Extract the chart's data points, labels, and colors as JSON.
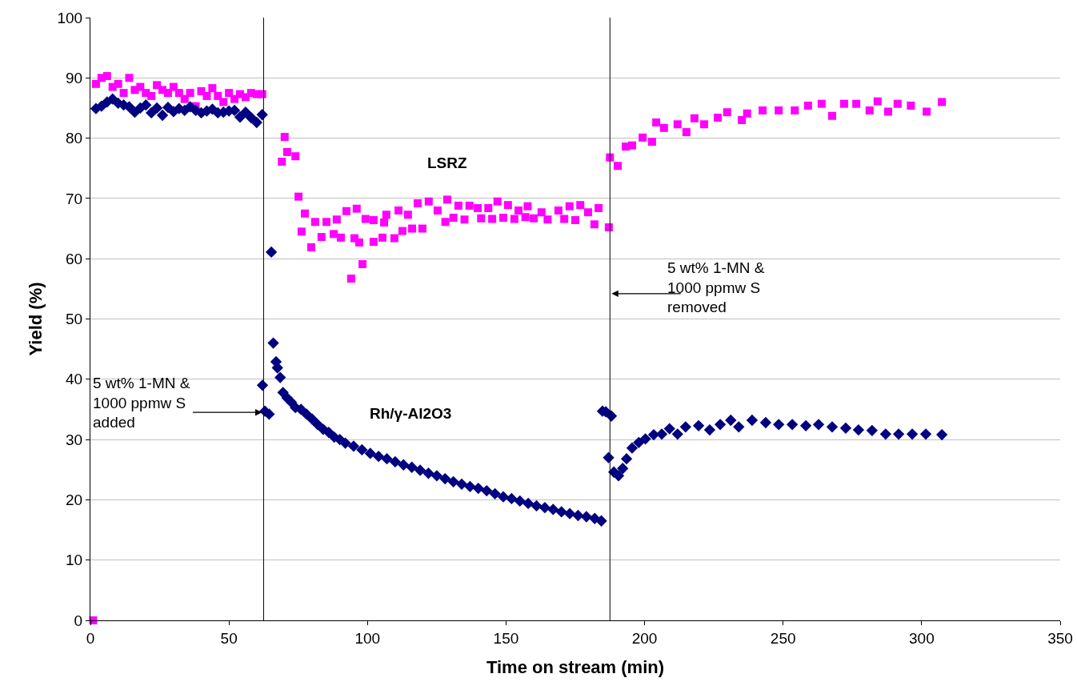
{
  "chart_data": {
    "type": "scatter",
    "xlabel": "Time on stream (min)",
    "ylabel": "Yield (%)",
    "xlim": [
      0,
      350
    ],
    "ylim": [
      0,
      100
    ],
    "xticks": [
      0,
      50,
      100,
      150,
      200,
      250,
      300,
      350
    ],
    "yticks": [
      0,
      10,
      20,
      30,
      40,
      50,
      60,
      70,
      80,
      90,
      100
    ],
    "grid": "y",
    "legend": false,
    "series": [
      {
        "name": "LSRZ",
        "color": "#ff00ff",
        "marker": "square",
        "x": [
          1,
          2,
          4,
          6,
          8,
          10,
          12,
          14,
          16,
          18,
          20,
          22,
          24,
          26,
          28,
          30,
          32,
          34,
          36,
          38,
          40,
          42,
          44,
          46,
          48,
          50,
          52,
          54,
          56,
          58,
          60,
          62,
          69.1,
          70.1,
          71,
          74,
          75.1,
          76.2,
          77.4,
          79.7,
          81.1,
          83.4,
          85.2,
          87.8,
          88.9,
          90.4,
          92.4,
          94.1,
          95.3,
          96.1,
          97,
          98.2,
          99.3,
          102.2,
          102.2,
          105.4,
          106,
          106.8,
          109.7,
          111.2,
          112.6,
          114.6,
          116.1,
          118.1,
          119.8,
          122.1,
          125.3,
          128.1,
          128.8,
          131,
          132.8,
          135,
          136.8,
          139.8,
          141,
          143.6,
          145,
          146.9,
          149,
          150.7,
          153,
          154.5,
          157,
          157.8,
          160,
          162.8,
          165,
          168.9,
          171,
          172.9,
          175,
          176.8,
          179.6,
          181.9,
          183.4,
          187.1,
          187.5,
          190.3,
          193.2,
          195.5,
          199.3,
          202.7,
          204.2,
          207,
          211.9,
          215.1,
          218,
          221.5,
          226.4,
          229.8,
          235.1,
          237,
          242.6,
          248.4,
          254.2,
          259,
          263.9,
          267.7,
          272,
          276.4,
          281.2,
          284.1,
          287.9,
          291.3,
          296.1,
          301.8,
          307.3
        ],
        "values": [
          0,
          89,
          90,
          90.3,
          88.5,
          89,
          87.5,
          90,
          88,
          88.5,
          87.5,
          87,
          88.8,
          88,
          87.5,
          88.5,
          87.5,
          86.5,
          87.5,
          85.3,
          87.8,
          87,
          88.3,
          87,
          86,
          87.5,
          86.5,
          87.3,
          86.8,
          87.5,
          87.3,
          87.3,
          76.1,
          80.2,
          77.7,
          77,
          70.3,
          64.5,
          67.5,
          61.9,
          66.1,
          63.6,
          66.1,
          64.1,
          66.5,
          63.5,
          67.9,
          56.7,
          63.4,
          68.3,
          62.7,
          59.1,
          66.6,
          66.4,
          62.8,
          63.5,
          66,
          67.3,
          63.4,
          68,
          64.6,
          67.3,
          65,
          69.2,
          65,
          69.5,
          68,
          66.1,
          69.8,
          66.8,
          68.8,
          66.5,
          68.8,
          68.4,
          66.7,
          68.4,
          66.6,
          69.5,
          66.8,
          68.9,
          66.6,
          68,
          66.9,
          68.7,
          66.7,
          67.7,
          66.5,
          68,
          66.6,
          68.7,
          66.4,
          68.9,
          67.7,
          65.7,
          68.4,
          65.2,
          76.8,
          75.4,
          78.6,
          78.8,
          80.1,
          79.4,
          82.6,
          81.7,
          82.3,
          81,
          83.3,
          82.3,
          83.4,
          84.3,
          83,
          84.1,
          84.6,
          84.6,
          84.6,
          85.4,
          85.7,
          83.7,
          85.7,
          85.7,
          84.6,
          86.1,
          84.4,
          85.7,
          85.4,
          84.4,
          86
        ]
      },
      {
        "name": "Rh/γ-Al2O3",
        "color": "#000080",
        "marker": "diamond",
        "x": [
          2,
          4,
          6,
          8,
          10,
          12,
          14,
          16,
          18,
          20,
          22,
          24,
          26,
          28,
          30,
          32,
          34,
          36,
          38,
          40,
          42,
          44,
          46,
          48,
          50,
          52,
          54,
          56,
          58,
          60,
          62,
          62.1,
          63,
          64.5,
          65.3,
          66,
          67,
          67.5,
          68.5,
          69.5,
          71,
          72.5,
          74,
          76,
          78,
          80,
          82,
          84,
          86,
          88,
          90,
          92,
          95,
          98,
          101,
          104,
          107,
          110,
          113,
          116,
          119,
          122,
          125,
          128,
          131,
          134,
          137,
          140,
          143,
          146,
          149,
          152,
          155,
          158,
          161,
          164,
          167,
          170,
          173,
          176,
          179,
          182,
          184.4,
          184.8,
          186,
          187,
          188,
          188.9,
          190.6,
          192.1,
          193.5,
          195.5,
          197.9,
          200.3,
          203.3,
          206.2,
          209,
          211.9,
          214.8,
          219.5,
          223.5,
          227.3,
          231.1,
          234,
          238.8,
          243.7,
          248.4,
          253.3,
          258.2,
          262.8,
          267.7,
          272.6,
          277.2,
          282.1,
          287,
          291.7,
          296.6,
          301.5,
          307.3
        ],
        "values": [
          84.9,
          85.3,
          86,
          86.5,
          85.8,
          85.5,
          85.2,
          84.3,
          85,
          85.5,
          84.2,
          85,
          83.8,
          85.1,
          84.4,
          84.9,
          84.6,
          85.2,
          84.6,
          84.2,
          84.5,
          84.8,
          84.2,
          84.3,
          84.5,
          84.6,
          83.5,
          84.3,
          83.4,
          82.6,
          83.9,
          39,
          34.7,
          34.2,
          61.1,
          46,
          42.9,
          41.9,
          40.3,
          37.8,
          36.9,
          36.2,
          35.3,
          35,
          34.2,
          33.4,
          32.5,
          31.7,
          31.2,
          30.4,
          30,
          29.4,
          28.9,
          28.3,
          27.7,
          27.2,
          26.8,
          26.3,
          25.8,
          25.4,
          24.9,
          24.4,
          24,
          23.5,
          23,
          22.6,
          22.2,
          21.9,
          21.5,
          21,
          20.5,
          20.2,
          19.8,
          19.4,
          19,
          18.7,
          18.4,
          18,
          17.7,
          17.4,
          17.2,
          16.9,
          16.5,
          34.7,
          34.6,
          27,
          33.9,
          24.6,
          24,
          25.2,
          26.8,
          28.6,
          29.5,
          30.1,
          30.8,
          30.9,
          31.8,
          30.9,
          32.1,
          32.3,
          31.6,
          32.5,
          33.2,
          32.1,
          33.2,
          32.8,
          32.5,
          32.5,
          32.3,
          32.5,
          32.1,
          31.9,
          31.6,
          31.5,
          30.9,
          30.9,
          30.9,
          30.9,
          30.8
        ]
      }
    ],
    "ref_lines": [
      {
        "axis": "x",
        "value": 62.5,
        "color": "#000000"
      },
      {
        "axis": "x",
        "value": 187.5,
        "color": "#000000"
      }
    ],
    "annotations": [
      {
        "text": "5 wt% 1-MN &\n1000 ppmw S\nadded",
        "x": 62.5,
        "y": 34.5
      },
      {
        "text": "5 wt% 1-MN &\n1000 ppmw S\nremoved",
        "x": 187.5,
        "y": 54.2
      }
    ]
  }
}
